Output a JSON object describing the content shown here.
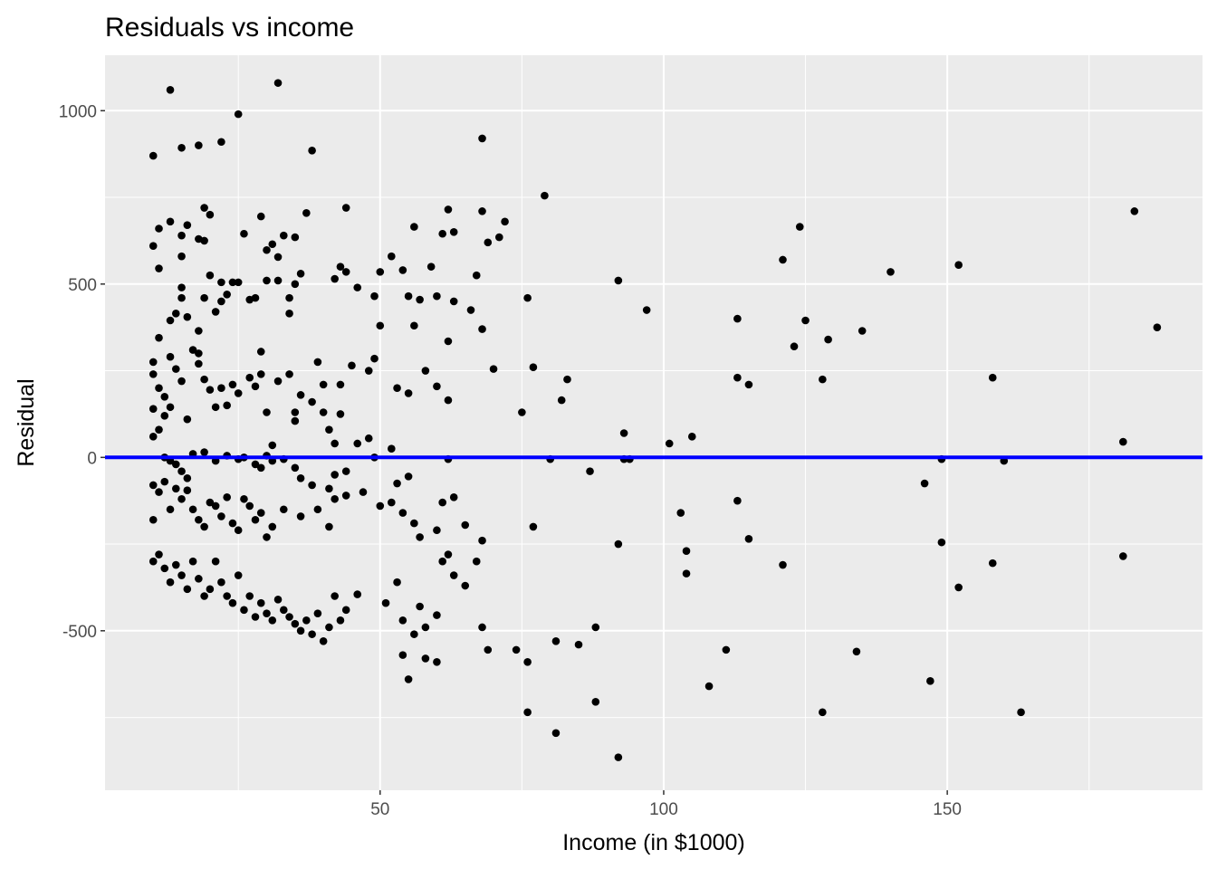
{
  "chart_data": {
    "type": "scatter",
    "title": "Residuals vs income",
    "xlabel": "Income (in $1000)",
    "ylabel": "Residual",
    "xlim": [
      1.5,
      195
    ],
    "ylim": [
      -960,
      1160
    ],
    "x_ticks": [
      50,
      100,
      150
    ],
    "x_tick_labels": [
      "50",
      "100",
      "150"
    ],
    "y_ticks": [
      -500,
      0,
      500,
      1000
    ],
    "y_tick_labels": [
      "-500",
      "0",
      "500",
      "1000"
    ],
    "x_minor": [
      25,
      75,
      125,
      175
    ],
    "y_minor": [
      -750,
      -250,
      250,
      750
    ],
    "grid": true,
    "reference_line": {
      "y": 0,
      "color": "#0000ff"
    },
    "colors": {
      "panel": "#ebebeb",
      "grid": "#ffffff",
      "point": "#000000",
      "line": "#0000ff",
      "tick": "#333333"
    },
    "points": [
      [
        10,
        870
      ],
      [
        13,
        1060
      ],
      [
        25,
        990
      ],
      [
        22,
        910
      ],
      [
        32,
        1080
      ],
      [
        38,
        885
      ],
      [
        18,
        900
      ],
      [
        15,
        893
      ],
      [
        68,
        920
      ],
      [
        10,
        610
      ],
      [
        11,
        660
      ],
      [
        13,
        680
      ],
      [
        15,
        640
      ],
      [
        16,
        670
      ],
      [
        18,
        630
      ],
      [
        19,
        720
      ],
      [
        20,
        700
      ],
      [
        19,
        625
      ],
      [
        11,
        545
      ],
      [
        15,
        580
      ],
      [
        26,
        645
      ],
      [
        29,
        695
      ],
      [
        30,
        598
      ],
      [
        31,
        615
      ],
      [
        33,
        640
      ],
      [
        32,
        578
      ],
      [
        35,
        635
      ],
      [
        37,
        705
      ],
      [
        44,
        720
      ],
      [
        56,
        665
      ],
      [
        61,
        645
      ],
      [
        62,
        715
      ],
      [
        63,
        650
      ],
      [
        68,
        710
      ],
      [
        69,
        620
      ],
      [
        71,
        635
      ],
      [
        72,
        680
      ],
      [
        79,
        755
      ],
      [
        124,
        665
      ],
      [
        183,
        710
      ],
      [
        10,
        275
      ],
      [
        11,
        345
      ],
      [
        12,
        175
      ],
      [
        13,
        290
      ],
      [
        13,
        395
      ],
      [
        14,
        415
      ],
      [
        15,
        490
      ],
      [
        15,
        460
      ],
      [
        16,
        405
      ],
      [
        17,
        310
      ],
      [
        18,
        365
      ],
      [
        18,
        300
      ],
      [
        19,
        460
      ],
      [
        20,
        525
      ],
      [
        21,
        420
      ],
      [
        22,
        505
      ],
      [
        22,
        450
      ],
      [
        23,
        470
      ],
      [
        24,
        505
      ],
      [
        25,
        505
      ],
      [
        27,
        455
      ],
      [
        28,
        460
      ],
      [
        29,
        305
      ],
      [
        30,
        510
      ],
      [
        32,
        510
      ],
      [
        34,
        460
      ],
      [
        34,
        415
      ],
      [
        35,
        500
      ],
      [
        36,
        530
      ],
      [
        42,
        515
      ],
      [
        43,
        550
      ],
      [
        44,
        535
      ],
      [
        46,
        490
      ],
      [
        49,
        465
      ],
      [
        50,
        535
      ],
      [
        52,
        580
      ],
      [
        54,
        540
      ],
      [
        55,
        465
      ],
      [
        57,
        455
      ],
      [
        59,
        550
      ],
      [
        60,
        465
      ],
      [
        62,
        335
      ],
      [
        63,
        450
      ],
      [
        66,
        425
      ],
      [
        67,
        525
      ],
      [
        68,
        370
      ],
      [
        76,
        460
      ],
      [
        92,
        510
      ],
      [
        97,
        425
      ],
      [
        113,
        400
      ],
      [
        121,
        570
      ],
      [
        123,
        320
      ],
      [
        125,
        395
      ],
      [
        129,
        340
      ],
      [
        135,
        365
      ],
      [
        140,
        535
      ],
      [
        152,
        555
      ],
      [
        187,
        375
      ],
      [
        10,
        240
      ],
      [
        10,
        140
      ],
      [
        11,
        200
      ],
      [
        12,
        120
      ],
      [
        13,
        145
      ],
      [
        14,
        255
      ],
      [
        15,
        220
      ],
      [
        16,
        110
      ],
      [
        18,
        270
      ],
      [
        19,
        225
      ],
      [
        20,
        195
      ],
      [
        21,
        145
      ],
      [
        22,
        200
      ],
      [
        23,
        150
      ],
      [
        24,
        210
      ],
      [
        25,
        185
      ],
      [
        27,
        230
      ],
      [
        28,
        205
      ],
      [
        29,
        240
      ],
      [
        30,
        130
      ],
      [
        31,
        35
      ],
      [
        32,
        220
      ],
      [
        34,
        240
      ],
      [
        35,
        130
      ],
      [
        35,
        105
      ],
      [
        36,
        180
      ],
      [
        38,
        160
      ],
      [
        39,
        275
      ],
      [
        40,
        210
      ],
      [
        40,
        130
      ],
      [
        41,
        80
      ],
      [
        42,
        40
      ],
      [
        43,
        125
      ],
      [
        43,
        210
      ],
      [
        45,
        265
      ],
      [
        48,
        250
      ],
      [
        49,
        285
      ],
      [
        50,
        380
      ],
      [
        52,
        25
      ],
      [
        53,
        200
      ],
      [
        55,
        185
      ],
      [
        56,
        380
      ],
      [
        58,
        250
      ],
      [
        60,
        205
      ],
      [
        62,
        165
      ],
      [
        70,
        255
      ],
      [
        75,
        130
      ],
      [
        77,
        260
      ],
      [
        82,
        165
      ],
      [
        83,
        225
      ],
      [
        93,
        70
      ],
      [
        101,
        40
      ],
      [
        105,
        60
      ],
      [
        113,
        230
      ],
      [
        115,
        210
      ],
      [
        128,
        225
      ],
      [
        158,
        230
      ],
      [
        181,
        45
      ],
      [
        10,
        60
      ],
      [
        11,
        80
      ],
      [
        12,
        0
      ],
      [
        13,
        -10
      ],
      [
        14,
        -20
      ],
      [
        15,
        -40
      ],
      [
        16,
        -60
      ],
      [
        17,
        10
      ],
      [
        19,
        15
      ],
      [
        21,
        -10
      ],
      [
        23,
        5
      ],
      [
        25,
        -5
      ],
      [
        26,
        0
      ],
      [
        28,
        -20
      ],
      [
        29,
        -30
      ],
      [
        30,
        5
      ],
      [
        31,
        -10
      ],
      [
        33,
        -5
      ],
      [
        35,
        -30
      ],
      [
        36,
        -60
      ],
      [
        38,
        -80
      ],
      [
        41,
        -90
      ],
      [
        42,
        -50
      ],
      [
        44,
        -40
      ],
      [
        46,
        40
      ],
      [
        48,
        55
      ],
      [
        49,
        0
      ],
      [
        52,
        -130
      ],
      [
        53,
        -75
      ],
      [
        55,
        -55
      ],
      [
        62,
        -5
      ],
      [
        80,
        -5
      ],
      [
        87,
        -40
      ],
      [
        93,
        -5
      ],
      [
        94,
        -5
      ],
      [
        146,
        -75
      ],
      [
        149,
        -5
      ],
      [
        160,
        -10
      ],
      [
        10,
        -80
      ],
      [
        11,
        -100
      ],
      [
        12,
        -70
      ],
      [
        13,
        -150
      ],
      [
        14,
        -90
      ],
      [
        15,
        -120
      ],
      [
        16,
        -95
      ],
      [
        17,
        -150
      ],
      [
        18,
        -180
      ],
      [
        19,
        -200
      ],
      [
        20,
        -130
      ],
      [
        21,
        -140
      ],
      [
        22,
        -170
      ],
      [
        23,
        -115
      ],
      [
        24,
        -190
      ],
      [
        25,
        -210
      ],
      [
        26,
        -120
      ],
      [
        27,
        -140
      ],
      [
        28,
        -180
      ],
      [
        29,
        -160
      ],
      [
        30,
        -230
      ],
      [
        31,
        -200
      ],
      [
        33,
        -150
      ],
      [
        36,
        -170
      ],
      [
        39,
        -150
      ],
      [
        41,
        -200
      ],
      [
        42,
        -120
      ],
      [
        44,
        -110
      ],
      [
        47,
        -100
      ],
      [
        50,
        -140
      ],
      [
        54,
        -160
      ],
      [
        56,
        -190
      ],
      [
        57,
        -230
      ],
      [
        60,
        -210
      ],
      [
        61,
        -130
      ],
      [
        63,
        -115
      ],
      [
        65,
        -195
      ],
      [
        68,
        -240
      ],
      [
        77,
        -200
      ],
      [
        92,
        -250
      ],
      [
        103,
        -160
      ],
      [
        113,
        -125
      ],
      [
        115,
        -235
      ],
      [
        149,
        -245
      ],
      [
        158,
        -305
      ],
      [
        10,
        -180
      ],
      [
        10,
        -300
      ],
      [
        11,
        -280
      ],
      [
        12,
        -320
      ],
      [
        13,
        -360
      ],
      [
        14,
        -310
      ],
      [
        15,
        -340
      ],
      [
        16,
        -380
      ],
      [
        17,
        -300
      ],
      [
        18,
        -350
      ],
      [
        19,
        -400
      ],
      [
        20,
        -380
      ],
      [
        21,
        -300
      ],
      [
        22,
        -360
      ],
      [
        23,
        -400
      ],
      [
        24,
        -420
      ],
      [
        25,
        -340
      ],
      [
        26,
        -440
      ],
      [
        27,
        -400
      ],
      [
        28,
        -460
      ],
      [
        29,
        -420
      ],
      [
        30,
        -450
      ],
      [
        31,
        -470
      ],
      [
        32,
        -410
      ],
      [
        33,
        -440
      ],
      [
        34,
        -460
      ],
      [
        35,
        -480
      ],
      [
        36,
        -500
      ],
      [
        37,
        -470
      ],
      [
        38,
        -510
      ],
      [
        39,
        -450
      ],
      [
        40,
        -530
      ],
      [
        41,
        -490
      ],
      [
        42,
        -400
      ],
      [
        43,
        -470
      ],
      [
        44,
        -440
      ],
      [
        46,
        -395
      ],
      [
        51,
        -420
      ],
      [
        53,
        -360
      ],
      [
        54,
        -470
      ],
      [
        56,
        -510
      ],
      [
        57,
        -430
      ],
      [
        58,
        -490
      ],
      [
        60,
        -455
      ],
      [
        61,
        -300
      ],
      [
        62,
        -280
      ],
      [
        63,
        -340
      ],
      [
        65,
        -370
      ],
      [
        67,
        -300
      ],
      [
        68,
        -490
      ],
      [
        69,
        -555
      ],
      [
        74,
        -555
      ],
      [
        76,
        -590
      ],
      [
        81,
        -530
      ],
      [
        85,
        -540
      ],
      [
        88,
        -490
      ],
      [
        104,
        -270
      ],
      [
        104,
        -335
      ],
      [
        111,
        -555
      ],
      [
        121,
        -310
      ],
      [
        147,
        -645
      ],
      [
        152,
        -375
      ],
      [
        181,
        -285
      ],
      [
        54,
        -570
      ],
      [
        55,
        -640
      ],
      [
        58,
        -580
      ],
      [
        60,
        -590
      ],
      [
        76,
        -735
      ],
      [
        81,
        -795
      ],
      [
        88,
        -705
      ],
      [
        92,
        -865
      ],
      [
        108,
        -660
      ],
      [
        128,
        -735
      ],
      [
        134,
        -560
      ],
      [
        163,
        -735
      ]
    ]
  }
}
